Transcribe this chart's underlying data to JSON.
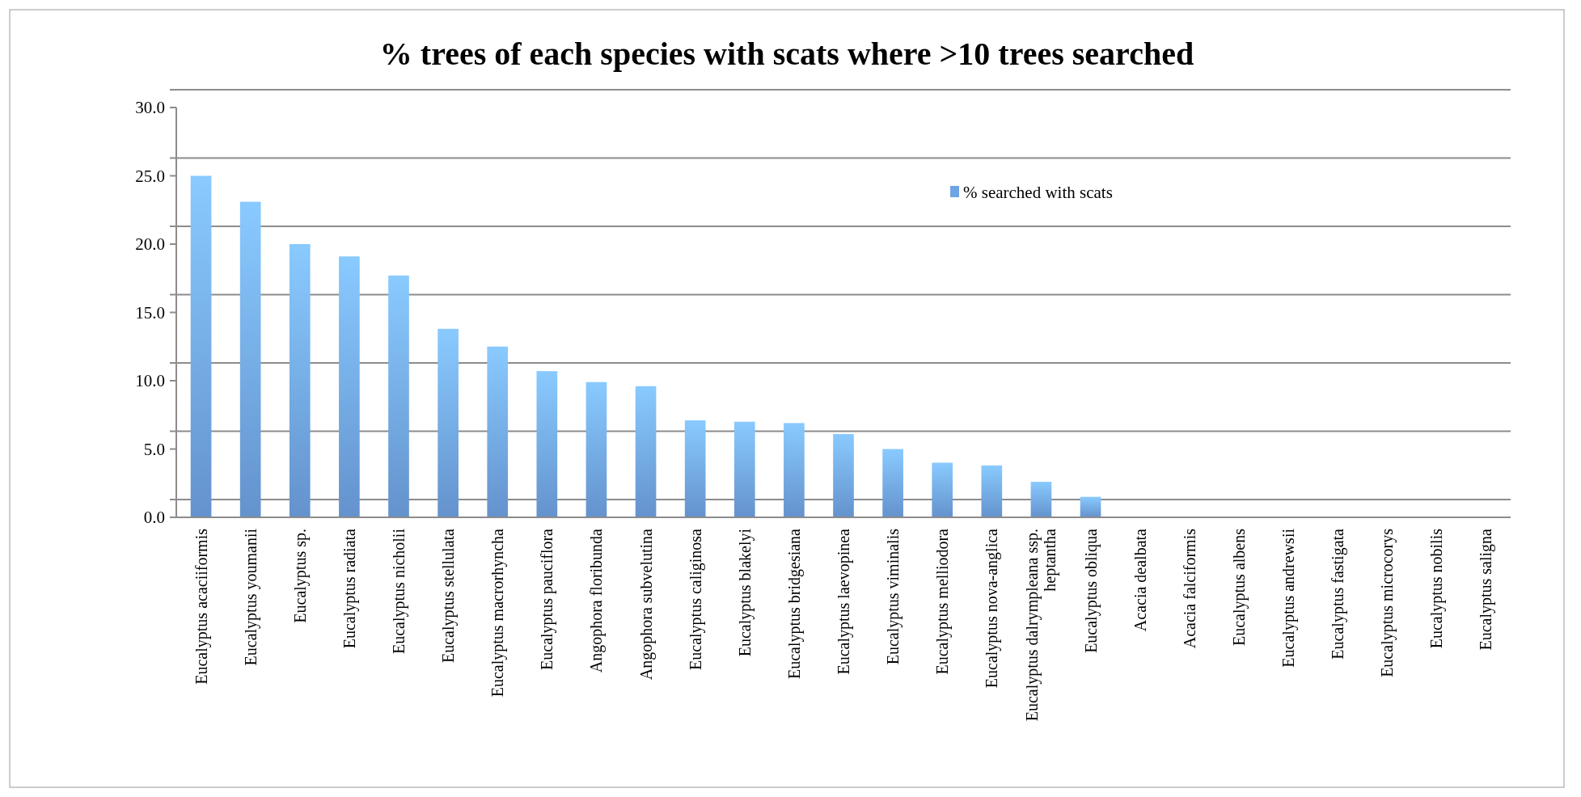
{
  "chart_data": {
    "type": "bar",
    "title": "% trees of each species with scats where >10 trees searched",
    "categories": [
      "Eucalyptus acaciiformis",
      "Eucalyptus youmanii",
      "Eucalyptus sp.",
      "Eucalyptus radiata",
      "Eucalyptus nicholii",
      "Eucalyptus stellulata",
      "Eucalyptus macrorhyncha",
      "Eucalyptus pauciflora",
      "Angophora floribunda",
      "Angophora subvelutina",
      "Eucalyptus caliginosa",
      "Eucalyptus blakelyi",
      "Eucalyptus bridgesiana",
      "Eucalyptus laevopinea",
      "Eucalyptus viminalis",
      "Eucalyptus melliodora",
      "Eucalyptus nova-anglica",
      "Eucalyptus dalrympleana ssp. heptantha",
      "Eucalyptus obliqua",
      "Acacia dealbata",
      "Acacia falciformis",
      "Eucalyptus albens",
      "Eucalyptus andrewsii",
      "Eucalyptus fastigata",
      "Eucalyptus microcorys",
      "Eucalyptus nobilis",
      "Eucalyptus saligna"
    ],
    "series": [
      {
        "name": "% searched with scats",
        "color": "#6fa3e4",
        "values": [
          25.0,
          23.1,
          20.0,
          19.1,
          17.7,
          13.8,
          12.5,
          10.7,
          9.9,
          9.6,
          7.1,
          7.0,
          6.9,
          6.1,
          5.0,
          4.0,
          3.8,
          2.6,
          1.5,
          0,
          0,
          0,
          0,
          0,
          0,
          0,
          0
        ]
      }
    ],
    "ylim": [
      0,
      30
    ],
    "yticks": [
      {
        "value": 0,
        "label": "0.0"
      },
      {
        "value": 5,
        "label": "5.0"
      },
      {
        "value": 10,
        "label": "10.0"
      },
      {
        "value": 15,
        "label": "15.0"
      },
      {
        "value": 20,
        "label": "20.0"
      },
      {
        "value": 25,
        "label": "25.0"
      },
      {
        "value": 30,
        "label": "30.0"
      }
    ],
    "grid": "y",
    "legend": "top right"
  }
}
